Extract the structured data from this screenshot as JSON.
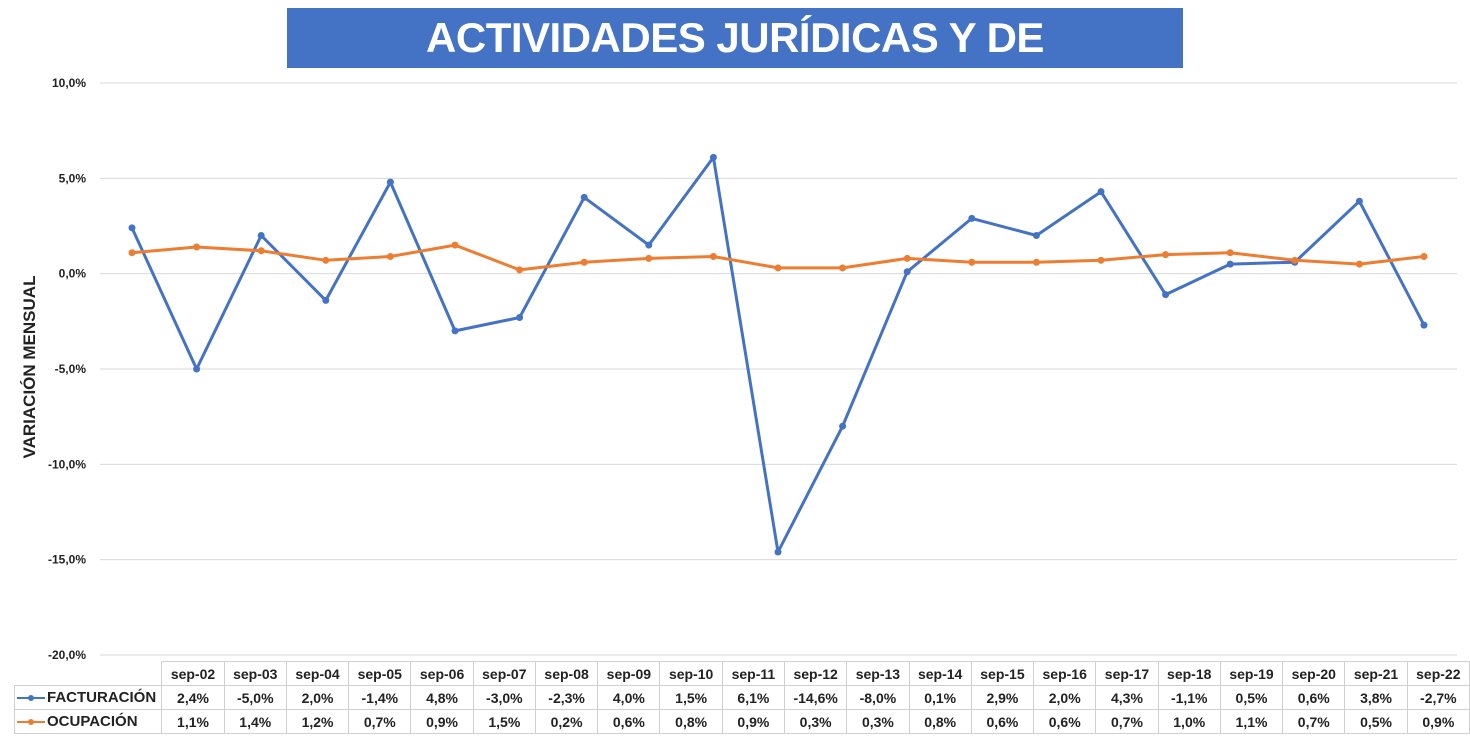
{
  "colors": {
    "title_bg": "#4472c4",
    "facturacion": "#4472c4",
    "ocupacion": "#ed7d31",
    "grid": "#d9d9d9"
  },
  "chart_data": {
    "type": "line",
    "title": "ACTIVIDADES JURÍDICAS Y DE CONSULTORÍA",
    "ylabel": "VARIACIÓN MENSUAL",
    "ylim": [
      -20,
      10
    ],
    "yticks": [
      10,
      5,
      0,
      -5,
      -10,
      -15,
      -20
    ],
    "ytick_labels": [
      "10,0%",
      "5,0%",
      "0,0%",
      "-5,0%",
      "-10,0%",
      "-15,0%",
      "-20,0%"
    ],
    "grid": true,
    "legend": "data-table",
    "categories": [
      "sep-02",
      "sep-03",
      "sep-04",
      "sep-05",
      "sep-06",
      "sep-07",
      "sep-08",
      "sep-09",
      "sep-10",
      "sep-11",
      "sep-12",
      "sep-13",
      "sep-14",
      "sep-15",
      "sep-16",
      "sep-17",
      "sep-18",
      "sep-19",
      "sep-20",
      "sep-21",
      "sep-22"
    ],
    "series": [
      {
        "name": "FACTURACIÓN",
        "values": [
          2.4,
          -5.0,
          2.0,
          -1.4,
          4.8,
          -3.0,
          -2.3,
          4.0,
          1.5,
          6.1,
          -14.6,
          -8.0,
          0.1,
          2.9,
          2.0,
          4.3,
          -1.1,
          0.5,
          0.6,
          3.8,
          -2.7
        ],
        "labels": [
          "2,4%",
          "-5,0%",
          "2,0%",
          "-1,4%",
          "4,8%",
          "-3,0%",
          "-2,3%",
          "4,0%",
          "1,5%",
          "6,1%",
          "-14,6%",
          "-8,0%",
          "0,1%",
          "2,9%",
          "2,0%",
          "4,3%",
          "-1,1%",
          "0,5%",
          "0,6%",
          "3,8%",
          "-2,7%"
        ]
      },
      {
        "name": "OCUPACIÓN",
        "values": [
          1.1,
          1.4,
          1.2,
          0.7,
          0.9,
          1.5,
          0.2,
          0.6,
          0.8,
          0.9,
          0.3,
          0.3,
          0.8,
          0.6,
          0.6,
          0.7,
          1.0,
          1.1,
          0.7,
          0.5,
          0.9
        ],
        "labels": [
          "1,1%",
          "1,4%",
          "1,2%",
          "0,7%",
          "0,9%",
          "1,5%",
          "0,2%",
          "0,6%",
          "0,8%",
          "0,9%",
          "0,3%",
          "0,3%",
          "0,8%",
          "0,6%",
          "0,6%",
          "0,7%",
          "1,0%",
          "1,1%",
          "0,7%",
          "0,5%",
          "0,9%"
        ]
      }
    ]
  }
}
